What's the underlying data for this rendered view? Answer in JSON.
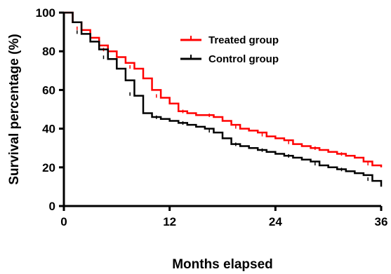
{
  "chart_data": {
    "type": "line",
    "title": "",
    "xlabel": "Months elapsed",
    "ylabel": "Survival percentage (%)",
    "xlim": [
      0,
      36
    ],
    "ylim": [
      0,
      100
    ],
    "xticks": [
      0,
      12,
      24,
      36
    ],
    "yticks": [
      0,
      20,
      40,
      60,
      80,
      100
    ],
    "grid": false,
    "legend_position": "top-center",
    "step": true,
    "series": [
      {
        "name": "Treated group",
        "color": "#ff0000",
        "x": [
          0,
          1,
          2,
          3,
          4,
          5,
          6,
          7,
          8,
          9,
          10,
          11,
          12,
          13,
          14,
          15,
          16,
          17,
          18,
          19,
          20,
          21,
          22,
          23,
          24,
          25,
          26,
          27,
          28,
          29,
          30,
          31,
          32,
          33,
          34,
          35,
          36
        ],
        "y": [
          100,
          95,
          91,
          87,
          83,
          80,
          77,
          74,
          71,
          66,
          60,
          56,
          53,
          49,
          48,
          47,
          47,
          46,
          44,
          42,
          40,
          39,
          38,
          36,
          35,
          34,
          32,
          31,
          30,
          29,
          28,
          27,
          26,
          25,
          23,
          21,
          20
        ]
      },
      {
        "name": "Control group",
        "color": "#000000",
        "x": [
          0,
          1,
          2,
          3,
          4,
          5,
          6,
          7,
          8,
          9,
          10,
          11,
          12,
          13,
          14,
          15,
          16,
          17,
          18,
          19,
          20,
          21,
          22,
          23,
          24,
          25,
          26,
          27,
          28,
          29,
          30,
          31,
          32,
          33,
          34,
          35,
          36
        ],
        "y": [
          100,
          95,
          89,
          85,
          81,
          76,
          71,
          65,
          57,
          48,
          46,
          45,
          44,
          43,
          42,
          41,
          40,
          38,
          35,
          32,
          31,
          30,
          29,
          28,
          27,
          26,
          25,
          24,
          23,
          21,
          20,
          19,
          18,
          17,
          16,
          13,
          10
        ]
      }
    ]
  }
}
